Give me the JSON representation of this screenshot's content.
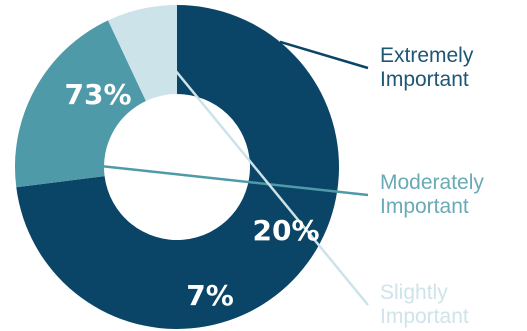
{
  "chart_data": {
    "type": "pie",
    "donut": true,
    "categories": [
      "Extremely Important",
      "Moderately Important",
      "Slightly Important"
    ],
    "values": [
      73,
      20,
      7
    ],
    "value_labels": [
      "73%",
      "20%",
      "7%"
    ],
    "legend_lines": [
      [
        "Extremely",
        "Important"
      ],
      [
        "Moderately",
        "Important"
      ],
      [
        "Slightly",
        "Important"
      ]
    ],
    "colors": [
      "#0a4466",
      "#4f9aa8",
      "#cce3ea"
    ],
    "legend_text_colors": [
      "#1f5674",
      "#6aaab6",
      "#cfe3ea"
    ],
    "legend_placement": "right",
    "title": ""
  }
}
